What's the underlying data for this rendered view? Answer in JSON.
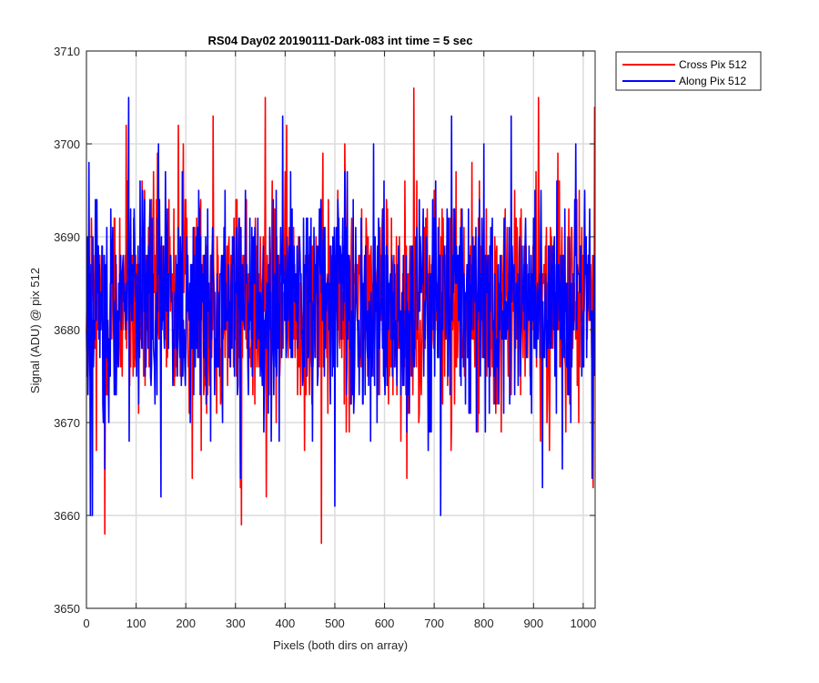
{
  "chart_data": {
    "type": "line",
    "title": "RS04 Day02 20190111-Dark-083 int time = 5 sec",
    "xlabel": "Pixels (both dirs on array)",
    "ylabel": "Signal (ADU) @ pix 512",
    "xlim": [
      0,
      1024
    ],
    "ylim": [
      3650,
      3710
    ],
    "xticks": [
      0,
      100,
      200,
      300,
      400,
      500,
      600,
      700,
      800,
      900,
      1000
    ],
    "yticks": [
      3650,
      3660,
      3670,
      3680,
      3690,
      3700,
      3710
    ],
    "grid": true,
    "legend_position": "outside-top-right",
    "n_points": 1024,
    "series": [
      {
        "name": "Cross Pix 512",
        "color": "#ff0000",
        "mean": 3683,
        "spread": 6,
        "anchors": [
          [
            0,
            3680
          ],
          [
            7,
            3675
          ],
          [
            20,
            3667
          ],
          [
            37,
            3658
          ],
          [
            80,
            3702
          ],
          [
            105,
            3671
          ],
          [
            185,
            3702
          ],
          [
            195,
            3700
          ],
          [
            213,
            3664
          ],
          [
            255,
            3703
          ],
          [
            310,
            3663
          ],
          [
            312,
            3659
          ],
          [
            360,
            3705
          ],
          [
            362,
            3662
          ],
          [
            473,
            3657
          ],
          [
            520,
            3700
          ],
          [
            600,
            3688
          ],
          [
            645,
            3664
          ],
          [
            659,
            3706
          ],
          [
            700,
            3695
          ],
          [
            735,
            3670
          ],
          [
            835,
            3669
          ],
          [
            910,
            3705
          ],
          [
            914,
            3668
          ],
          [
            1020,
            3663
          ],
          [
            1023,
            3704
          ]
        ]
      },
      {
        "name": "Along Pix 512",
        "color": "#0000ff",
        "mean": 3683,
        "spread": 6,
        "anchors": [
          [
            0,
            3680
          ],
          [
            5,
            3698
          ],
          [
            8,
            3660
          ],
          [
            12,
            3660
          ],
          [
            37,
            3665
          ],
          [
            85,
            3705
          ],
          [
            150,
            3662
          ],
          [
            310,
            3664
          ],
          [
            395,
            3703
          ],
          [
            500,
            3661
          ],
          [
            525,
            3697
          ],
          [
            578,
            3700
          ],
          [
            713,
            3660
          ],
          [
            735,
            3703
          ],
          [
            800,
            3700
          ],
          [
            855,
            3703
          ],
          [
            918,
            3663
          ],
          [
            958,
            3665
          ],
          [
            985,
            3700
          ],
          [
            1018,
            3664
          ]
        ]
      }
    ]
  }
}
